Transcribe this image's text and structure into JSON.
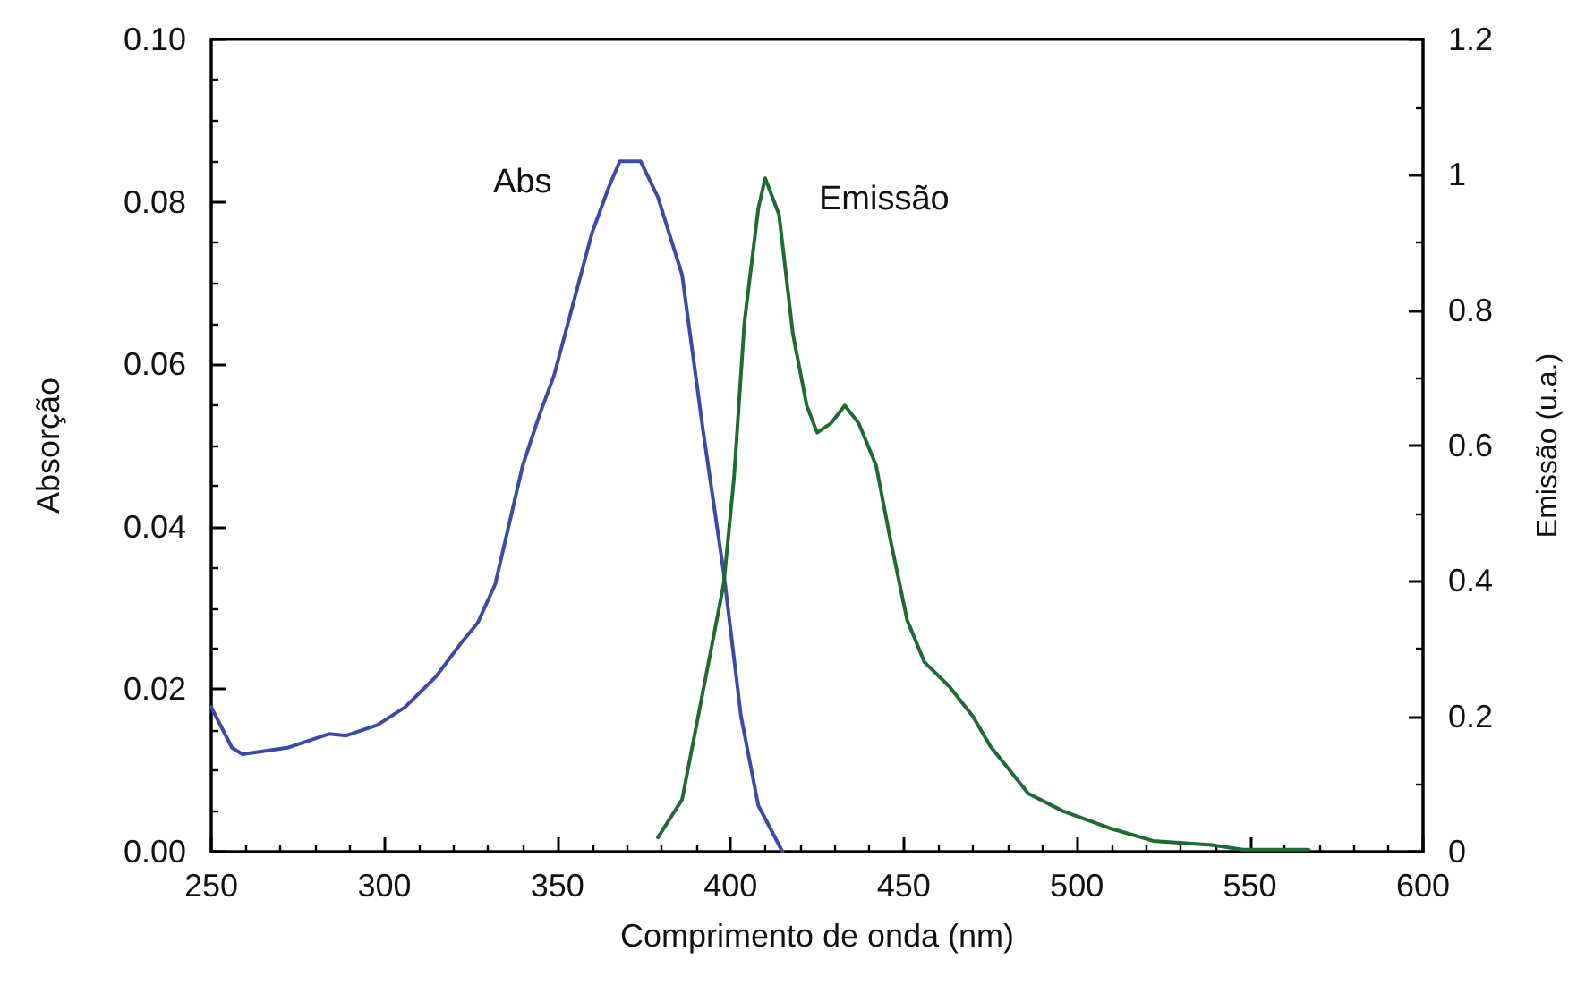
{
  "chart_data": {
    "type": "line",
    "xlabel": "Comprimento de onda (nm)",
    "ylabel": "Absorção",
    "y2label": "Emissão (u.a.)",
    "xlim": [
      250,
      600
    ],
    "xticks": [
      250,
      300,
      350,
      400,
      450,
      500,
      550,
      600
    ],
    "ylim": [
      0,
      0.1
    ],
    "yticks": [
      {
        "value": 0,
        "label": "0.00"
      },
      {
        "value": 0.02,
        "label": "0.02"
      },
      {
        "value": 0.04,
        "label": "0.04"
      },
      {
        "value": 0.06,
        "label": "0.06"
      },
      {
        "value": 0.08,
        "label": "0.08"
      },
      {
        "value": 0.1,
        "label": "0.10"
      }
    ],
    "y2lim": [
      0,
      1.2
    ],
    "y2ticks": [
      0,
      0.2,
      0.4,
      0.6,
      0.8,
      1,
      1.2
    ],
    "grid": false,
    "legend": false,
    "marker": "none",
    "line_style": "solid",
    "series": [
      {
        "name": "Abs",
        "color": "#3a4aa8",
        "x": [
          250,
          256,
          259,
          272,
          284,
          289,
          298,
          306,
          315,
          322,
          327,
          332,
          340,
          345,
          349,
          353,
          360,
          365,
          368,
          374,
          379,
          386,
          392,
          398,
          403,
          408,
          415
        ],
        "values": [
          0.0178,
          0.0128,
          0.012,
          0.0128,
          0.0145,
          0.0143,
          0.0156,
          0.0178,
          0.0216,
          0.0256,
          0.0282,
          0.0329,
          0.0476,
          0.054,
          0.0586,
          0.065,
          0.0762,
          0.082,
          0.085,
          0.085,
          0.0806,
          0.071,
          0.052,
          0.0344,
          0.0167,
          0.0057,
          0
        ]
      },
      {
        "name": "Emissão",
        "color": "#1e6b30",
        "axis": "y2",
        "x": [
          379,
          386,
          392,
          398,
          401,
          404,
          408,
          410,
          414,
          418,
          422,
          425,
          429,
          433,
          437,
          442,
          446,
          451,
          456,
          463,
          470,
          475,
          486,
          496,
          510,
          522,
          539,
          548,
          567
        ],
        "values": [
          0.021,
          0.077,
          0.236,
          0.395,
          0.553,
          0.782,
          0.95,
          0.995,
          0.941,
          0.765,
          0.659,
          0.619,
          0.633,
          0.659,
          0.633,
          0.571,
          0.465,
          0.342,
          0.28,
          0.245,
          0.2,
          0.156,
          0.086,
          0.06,
          0.034,
          0.016,
          0.01,
          0.003,
          0.003
        ]
      }
    ]
  }
}
